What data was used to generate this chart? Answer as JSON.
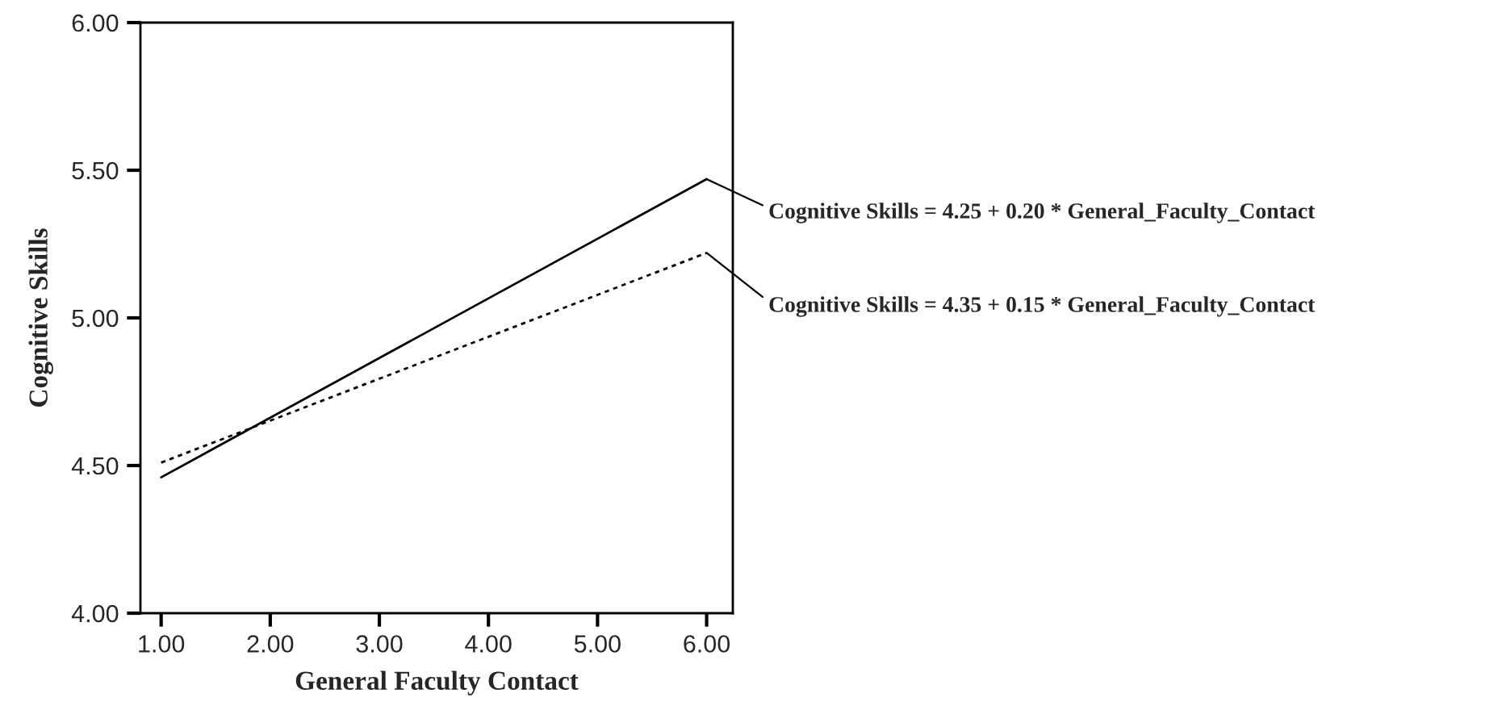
{
  "chart_data": {
    "type": "line",
    "xlabel": "General Faculty Contact",
    "ylabel": "Cognitive Skills",
    "x": [
      1,
      6
    ],
    "series": [
      {
        "color": "#000000",
        "values": [
          4.46,
          5.47
        ],
        "line_style": "solid"
      },
      {
        "color": "#000000",
        "values": [
          4.51,
          5.22
        ],
        "line_style": "dotted"
      }
    ],
    "xlim": [
      0.81,
      6.24
    ],
    "ylim": [
      4,
      6
    ],
    "xticks": [
      {
        "value": 1,
        "label": "1.00"
      },
      {
        "value": 2,
        "label": "2.00"
      },
      {
        "value": 3,
        "label": "3.00"
      },
      {
        "value": 4,
        "label": "4.00"
      },
      {
        "value": 5,
        "label": "5.00"
      },
      {
        "value": 6,
        "label": "6.00"
      }
    ],
    "yticks": [
      {
        "value": 4,
        "label": "4.00"
      },
      {
        "value": 4.5,
        "label": "4.50"
      },
      {
        "value": 5,
        "label": "5.00"
      },
      {
        "value": 5.5,
        "label": "5.50"
      },
      {
        "value": 6,
        "label": "6.00"
      }
    ],
    "annotations": [
      {
        "text": "Cognitive Skills = 4.25 + 0.20 * General_Faculty_Contact",
        "x": 6,
        "y": 5.47
      },
      {
        "text": "Cognitive Skills = 4.35 + 0.15 * General_Faculty_Contact",
        "x": 6,
        "y": 5.22
      }
    ],
    "grid": false,
    "marker": "none"
  }
}
